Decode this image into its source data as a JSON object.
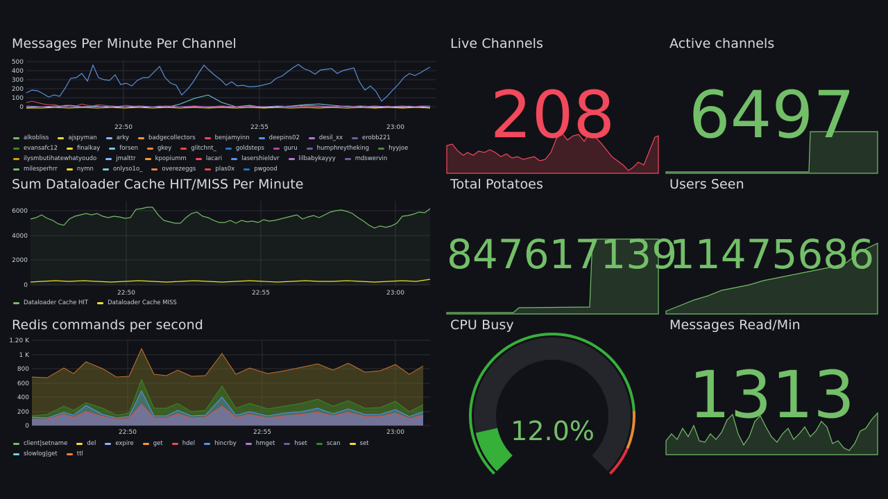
{
  "panels": {
    "messages": {
      "title": "Messages Per Minute Per Channel",
      "y_ticks": [
        "500",
        "400",
        "300",
        "200",
        "100",
        "0"
      ],
      "x_ticks": [
        "22:50",
        "22:55",
        "23:00"
      ],
      "legend": [
        {
          "name": "alkobliss",
          "color": "#73bf69"
        },
        {
          "name": "ajspyman",
          "color": "#fade2a"
        },
        {
          "name": "arky",
          "color": "#8ab8ff"
        },
        {
          "name": "badgecollectors",
          "color": "#ff9830"
        },
        {
          "name": "benjamyinn",
          "color": "#f2495c"
        },
        {
          "name": "deepins02",
          "color": "#5794f2"
        },
        {
          "name": "desil_xx",
          "color": "#b877d9"
        },
        {
          "name": "erobb221",
          "color": "#705da0"
        },
        {
          "name": "evansafc12",
          "color": "#37872d"
        },
        {
          "name": "finalkay",
          "color": "#fade2a"
        },
        {
          "name": "forsen",
          "color": "#6ed0e0"
        },
        {
          "name": "gkey",
          "color": "#ef843c"
        },
        {
          "name": "glitchnt_",
          "color": "#e24d42"
        },
        {
          "name": "goldsteps",
          "color": "#1f78c1"
        },
        {
          "name": "guru",
          "color": "#ba43a9"
        },
        {
          "name": "humphreytheking",
          "color": "#705da0"
        },
        {
          "name": "hyyjoe",
          "color": "#508642"
        },
        {
          "name": "ilysmbutihatewhatyoudo",
          "color": "#cca300"
        },
        {
          "name": "jmalttr",
          "color": "#8ab8ff"
        },
        {
          "name": "kpopiumm",
          "color": "#ff9830"
        },
        {
          "name": "lacari",
          "color": "#f2495c"
        },
        {
          "name": "lasershieldvr",
          "color": "#5794f2"
        },
        {
          "name": "lilbabykayyy",
          "color": "#b877d9"
        },
        {
          "name": "mdswervin",
          "color": "#705da0"
        },
        {
          "name": "milesperhrr",
          "color": "#73bf69"
        },
        {
          "name": "nymn",
          "color": "#fade2a"
        },
        {
          "name": "onlyso1o_",
          "color": "#6ed0e0"
        },
        {
          "name": "overezeggs",
          "color": "#ef843c"
        },
        {
          "name": "plas0x",
          "color": "#e24d42"
        },
        {
          "name": "pwgood",
          "color": "#1f78c1"
        }
      ]
    },
    "cache": {
      "title": "Sum Dataloader Cache HIT/MISS Per Minute",
      "y_ticks": [
        "6000",
        "4000",
        "2000",
        "0"
      ],
      "x_ticks": [
        "22:50",
        "22:55",
        "23:00"
      ],
      "legend": [
        {
          "name": "Dataloader Cache HIT",
          "color": "#73bf69"
        },
        {
          "name": "Dataloader Cache MISS",
          "color": "#fade2a"
        }
      ]
    },
    "redis": {
      "title": "Redis commands per second",
      "y_ticks": [
        "1.20 K",
        "1 K",
        "800",
        "600",
        "400",
        "200",
        "0"
      ],
      "x_ticks": [
        "22:50",
        "22:55",
        "23:00"
      ],
      "legend": [
        {
          "name": "client|setname",
          "color": "#73bf69"
        },
        {
          "name": "del",
          "color": "#fade2a"
        },
        {
          "name": "expire",
          "color": "#8ab8ff"
        },
        {
          "name": "get",
          "color": "#ff9830"
        },
        {
          "name": "hdel",
          "color": "#f2495c"
        },
        {
          "name": "hincrby",
          "color": "#5794f2"
        },
        {
          "name": "hmget",
          "color": "#b877d9"
        },
        {
          "name": "hset",
          "color": "#705da0"
        },
        {
          "name": "scan",
          "color": "#37872d"
        },
        {
          "name": "set",
          "color": "#fade2a"
        },
        {
          "name": "slowlog|get",
          "color": "#6ed0e0"
        },
        {
          "name": "ttl",
          "color": "#ef843c"
        }
      ]
    },
    "live_channels": {
      "title": "Live Channels",
      "value": "208",
      "color": "#f2495c"
    },
    "active_channels": {
      "title": "Active channels",
      "value": "6497",
      "color": "#73bf69"
    },
    "total_potatoes": {
      "title": "Total Potatoes",
      "value": "847617139",
      "color": "#73bf69"
    },
    "users_seen": {
      "title": "Users Seen",
      "value": "11475686",
      "color": "#73bf69"
    },
    "cpu_busy": {
      "title": "CPU Busy",
      "value": "12.0%",
      "percent": 12.0,
      "color": "#37b03a"
    },
    "messages_read": {
      "title": "Messages Read/Min",
      "value": "1313",
      "color": "#73bf69"
    }
  }
}
